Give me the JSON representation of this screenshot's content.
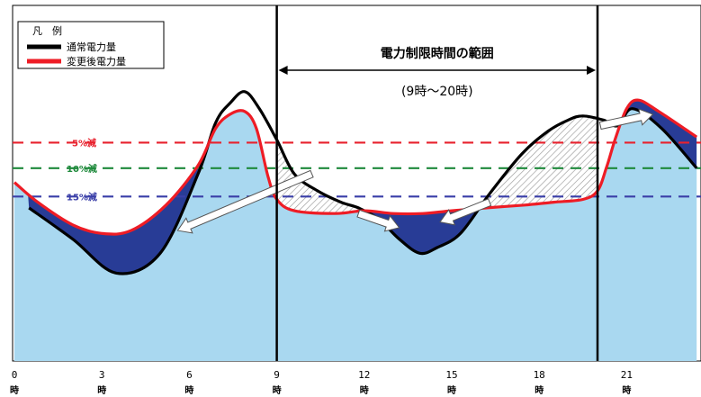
{
  "legend": {
    "title": "凡　例",
    "items": [
      {
        "label": "通常電力量",
        "color": "#000000"
      },
      {
        "label": "変更後電力量",
        "color": "#ee1c25"
      }
    ]
  },
  "period": {
    "title": "電力制限時間の範囲",
    "subtitle": "(9時～20時)"
  },
  "thresholds": [
    {
      "label": "5%減",
      "color": "#e8222e"
    },
    {
      "label": "10%減",
      "color": "#1f8a3c"
    },
    {
      "label": "15%減",
      "color": "#3a3fa8"
    }
  ],
  "colors": {
    "fill": "#a9d8f0",
    "reduction": "#283c96",
    "hatch": "#bdbdbd"
  },
  "chart_data": {
    "type": "line",
    "x_ticks": [
      0,
      3,
      6,
      9,
      12,
      15,
      18,
      21
    ],
    "x_tick_unit": "時",
    "x_range": [
      0,
      23.4
    ],
    "period_start": 9,
    "period_end": 20,
    "series": [
      {
        "name": "通常電力量",
        "color": "#000000",
        "points": [
          [
            0.5,
            54
          ],
          [
            2,
            43
          ],
          [
            3.5,
            31
          ],
          [
            5,
            38
          ],
          [
            6.3,
            66
          ],
          [
            6.9,
            84
          ],
          [
            7.4,
            91
          ],
          [
            7.9,
            95
          ],
          [
            8.4,
            89
          ],
          [
            9,
            78
          ],
          [
            9.6,
            66
          ],
          [
            10.4,
            60
          ],
          [
            11.2,
            56
          ],
          [
            11.8,
            54
          ],
          [
            12.5,
            50
          ],
          [
            13.2,
            43
          ],
          [
            13.9,
            38
          ],
          [
            14.5,
            40
          ],
          [
            15.3,
            45
          ],
          [
            16.3,
            59
          ],
          [
            17.4,
            73
          ],
          [
            18.3,
            81
          ],
          [
            19,
            85
          ],
          [
            19.5,
            86.4
          ],
          [
            20.2,
            85
          ],
          [
            20.7,
            83
          ],
          [
            21.2,
            89
          ],
          [
            22.2,
            82
          ],
          [
            23.4,
            68
          ]
        ]
      },
      {
        "name": "変更後電力量",
        "color": "#ee1c25",
        "points": [
          [
            0,
            63
          ],
          [
            0.8,
            56
          ],
          [
            2,
            48
          ],
          [
            3,
            45
          ],
          [
            4,
            46
          ],
          [
            5.2,
            55
          ],
          [
            6.3,
            69
          ],
          [
            6.9,
            82
          ],
          [
            7.4,
            87
          ],
          [
            7.9,
            88
          ],
          [
            8.3,
            82
          ],
          [
            8.7,
            65
          ],
          [
            9,
            57
          ],
          [
            9.6,
            53
          ],
          [
            11,
            52
          ],
          [
            12,
            53
          ],
          [
            13,
            52
          ],
          [
            14,
            52
          ],
          [
            15,
            53
          ],
          [
            16.2,
            54
          ],
          [
            17.5,
            55
          ],
          [
            18.5,
            56
          ],
          [
            19.5,
            57
          ],
          [
            20,
            60
          ],
          [
            20.3,
            68
          ],
          [
            20.6,
            78
          ],
          [
            21,
            89
          ],
          [
            21.4,
            92
          ],
          [
            22.1,
            88
          ],
          [
            23.4,
            79
          ]
        ]
      }
    ],
    "levels": [
      {
        "label": "5%減",
        "value": 77
      },
      {
        "label": "10%減",
        "value": 68
      },
      {
        "label": "15%減",
        "value": 58
      }
    ],
    "y_range": [
      0,
      100
    ],
    "grid": false,
    "legend_position": "top-left"
  }
}
